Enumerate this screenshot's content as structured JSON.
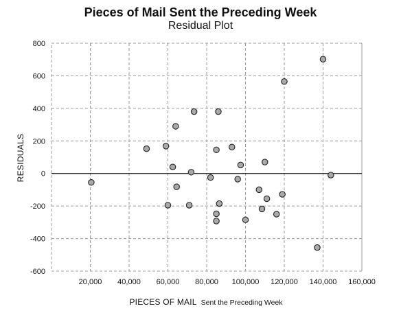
{
  "chart_data": {
    "type": "scatter",
    "title": "Pieces of Mail Sent the Preceding Week",
    "subtitle": "Residual Plot",
    "xlabel": "PIECES OF MAIL",
    "xlabel_sub": "Sent the Preceding Week",
    "ylabel": "RESIDUALS",
    "xlim": [
      0,
      160000
    ],
    "ylim": [
      -600,
      800
    ],
    "x_ticks": [
      20000,
      40000,
      60000,
      80000,
      100000,
      120000,
      140000,
      160000
    ],
    "x_tick_labels": [
      "20,000",
      "40,000",
      "60,000",
      "80,000",
      "100,000",
      "120,000",
      "140,000",
      "160,000"
    ],
    "y_ticks": [
      -600,
      -400,
      -200,
      0,
      200,
      400,
      600,
      800
    ],
    "y_tick_labels": [
      "-600",
      "-400",
      "-200",
      "0",
      "200",
      "400",
      "600",
      "800"
    ],
    "grid": true,
    "zero_line": true,
    "marker_color": "#a9a9a9",
    "points": [
      {
        "x": 20500,
        "y": -55
      },
      {
        "x": 49000,
        "y": 152
      },
      {
        "x": 59000,
        "y": 168
      },
      {
        "x": 60000,
        "y": -195
      },
      {
        "x": 62500,
        "y": 40
      },
      {
        "x": 64000,
        "y": 290
      },
      {
        "x": 64500,
        "y": -82
      },
      {
        "x": 71000,
        "y": -195
      },
      {
        "x": 72000,
        "y": 8
      },
      {
        "x": 73500,
        "y": 380
      },
      {
        "x": 82000,
        "y": -25
      },
      {
        "x": 85000,
        "y": 145
      },
      {
        "x": 85000,
        "y": -248
      },
      {
        "x": 85000,
        "y": -292
      },
      {
        "x": 86000,
        "y": 380
      },
      {
        "x": 86500,
        "y": -185
      },
      {
        "x": 93000,
        "y": 162
      },
      {
        "x": 96000,
        "y": -35
      },
      {
        "x": 97500,
        "y": 52
      },
      {
        "x": 100000,
        "y": -285
      },
      {
        "x": 107000,
        "y": -100
      },
      {
        "x": 108500,
        "y": -218
      },
      {
        "x": 110000,
        "y": 70
      },
      {
        "x": 111000,
        "y": -155
      },
      {
        "x": 116000,
        "y": -250
      },
      {
        "x": 119000,
        "y": -128
      },
      {
        "x": 120000,
        "y": 565
      },
      {
        "x": 137000,
        "y": -455
      },
      {
        "x": 140000,
        "y": 702
      },
      {
        "x": 144000,
        "y": -10
      }
    ]
  }
}
